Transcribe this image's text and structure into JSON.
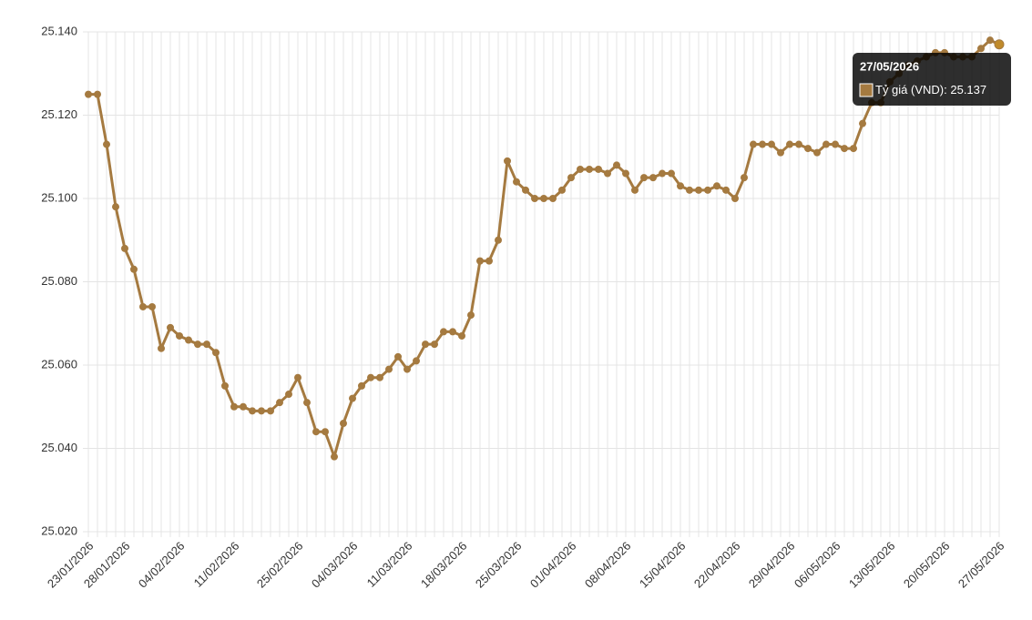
{
  "chart_data": {
    "type": "line",
    "categories": [
      "23/01/2026",
      null,
      null,
      null,
      "28/01/2026",
      null,
      null,
      null,
      null,
      null,
      "04/02/2026",
      null,
      null,
      null,
      null,
      null,
      "11/02/2026",
      null,
      null,
      null,
      null,
      null,
      null,
      "25/02/2026",
      null,
      null,
      null,
      null,
      null,
      "04/03/2026",
      null,
      null,
      null,
      null,
      null,
      "11/03/2026",
      null,
      null,
      null,
      null,
      null,
      "18/03/2026",
      null,
      null,
      null,
      null,
      null,
      "25/03/2026",
      null,
      null,
      null,
      null,
      null,
      "01/04/2026",
      null,
      null,
      null,
      null,
      null,
      "08/04/2026",
      null,
      null,
      null,
      null,
      null,
      "15/04/2026",
      null,
      null,
      null,
      null,
      null,
      "22/04/2026",
      null,
      null,
      null,
      null,
      null,
      "29/04/2026",
      null,
      null,
      null,
      null,
      "06/05/2026",
      null,
      null,
      null,
      null,
      null,
      "13/05/2026",
      null,
      null,
      null,
      null,
      null,
      "20/05/2026",
      null,
      null,
      null,
      null,
      null,
      "27/05/2026"
    ],
    "series": [
      {
        "name": "Tỷ giá (VND)",
        "color": "#a57a40",
        "values": [
          25125,
          25125,
          25113,
          25098,
          25088,
          25083,
          25074,
          25074,
          25064,
          25069,
          25067,
          25066,
          25065,
          25065,
          25063,
          25055,
          25050,
          25050,
          25049,
          25049,
          25049,
          25051,
          25053,
          25057,
          25051,
          25044,
          25044,
          25038,
          25046,
          25052,
          25055,
          25057,
          25057,
          25059,
          25062,
          25059,
          25061,
          25065,
          25065,
          25068,
          25068,
          25067,
          25072,
          25085,
          25085,
          25090,
          25109,
          25104,
          25102,
          25100,
          25100,
          25100,
          25102,
          25105,
          25107,
          25107,
          25107,
          25106,
          25108,
          25106,
          25102,
          25105,
          25105,
          25106,
          25106,
          25103,
          25102,
          25102,
          25102,
          25103,
          25102,
          25100,
          25105,
          25113,
          25113,
          25113,
          25111,
          25113,
          25113,
          25112,
          25111,
          25113,
          25113,
          25112,
          25112,
          25118,
          25123,
          25123,
          25128,
          25130,
          25132,
          25133,
          25134,
          25135,
          25135,
          25134,
          25134,
          25134,
          25136,
          25138,
          25137
        ]
      }
    ],
    "ylim": [
      25020,
      25140
    ],
    "yticks": [
      {
        "value": 25020,
        "label": "25.020"
      },
      {
        "value": 25040,
        "label": "25.040"
      },
      {
        "value": 25060,
        "label": "25.060"
      },
      {
        "value": 25080,
        "label": "25.080"
      },
      {
        "value": 25100,
        "label": "25.100"
      },
      {
        "value": 25120,
        "label": "25.120"
      },
      {
        "value": 25140,
        "label": "25.140"
      }
    ],
    "grid": true,
    "tooltip": {
      "category": "27/05/2026",
      "value": 25137,
      "value_label": "25.137"
    }
  }
}
